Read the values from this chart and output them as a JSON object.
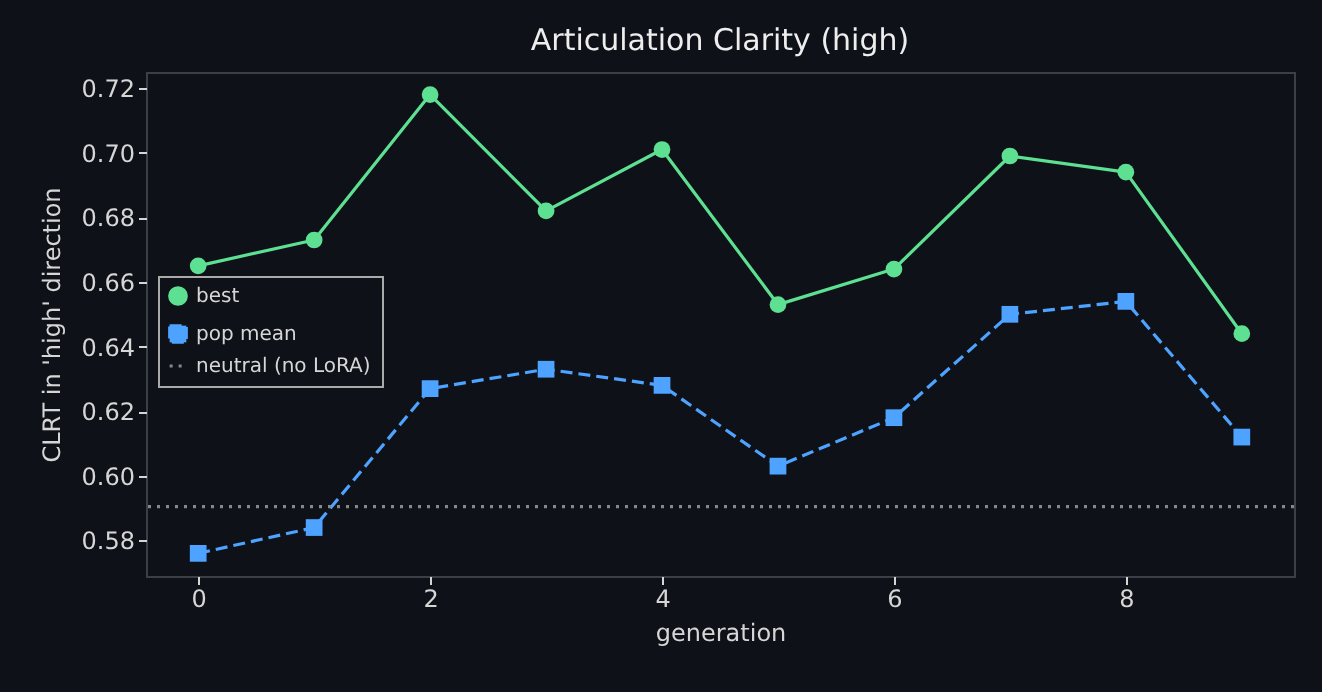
{
  "chart_data": {
    "type": "line",
    "title": "Articulation Clarity (high)",
    "xlabel": "generation",
    "ylabel": "CLRT in 'high' direction",
    "x": [
      0,
      1,
      2,
      3,
      4,
      5,
      6,
      7,
      8,
      9
    ],
    "series": [
      {
        "name": "best",
        "color": "#5ee092",
        "marker": "circle",
        "line_style": "solid",
        "values": [
          0.665,
          0.673,
          0.718,
          0.682,
          0.701,
          0.653,
          0.664,
          0.699,
          0.694,
          0.644
        ]
      },
      {
        "name": "pop mean",
        "color": "#4da3ff",
        "marker": "square",
        "line_style": "dashed",
        "values": [
          0.576,
          0.584,
          0.627,
          0.633,
          0.628,
          0.603,
          0.618,
          0.65,
          0.654,
          0.612
        ]
      }
    ],
    "ref_lines": [
      {
        "axis": "y",
        "value": 0.5905,
        "label": "neutral (no LoRA)",
        "color": "#888888",
        "line_style": "dotted"
      }
    ],
    "xlim": [
      -0.45,
      9.45
    ],
    "xticks": [
      0,
      2,
      4,
      6,
      8
    ],
    "ylim": [
      0.569,
      0.725
    ],
    "yticks": [
      {
        "value": 0.58,
        "label": "0.58"
      },
      {
        "value": 0.6,
        "label": "0.60"
      },
      {
        "value": 0.62,
        "label": "0.62"
      },
      {
        "value": 0.64,
        "label": "0.64"
      },
      {
        "value": 0.66,
        "label": "0.66"
      },
      {
        "value": 0.68,
        "label": "0.68"
      },
      {
        "value": 0.7,
        "label": "0.70"
      },
      {
        "value": 0.72,
        "label": "0.72"
      }
    ],
    "grid": false,
    "legend": "left"
  }
}
